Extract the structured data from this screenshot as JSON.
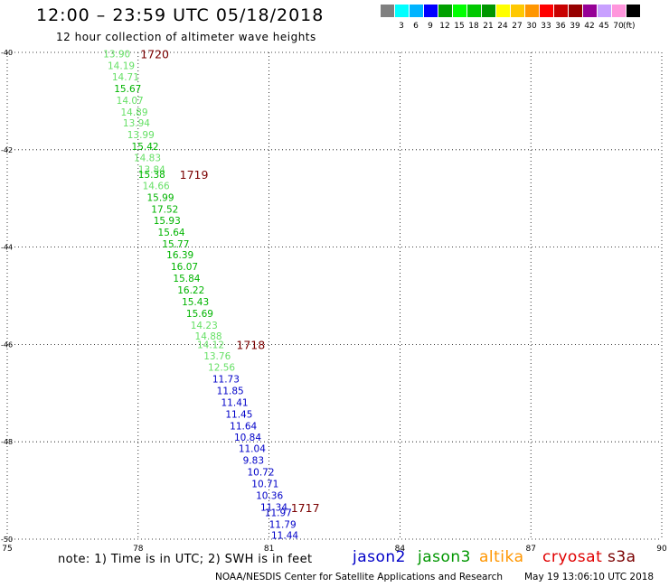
{
  "header": {
    "title": "12:00 – 23:59 UTC 05/18/2018",
    "subtitle": "12 hour collection of altimeter wave heights"
  },
  "legend": {
    "unit": "(ft)",
    "bins": [
      {
        "label": "",
        "color": "#808080"
      },
      {
        "label": "3",
        "color": "#00ffff"
      },
      {
        "label": "6",
        "color": "#00b4ff"
      },
      {
        "label": "9",
        "color": "#0000ff"
      },
      {
        "label": "12",
        "color": "#00a000"
      },
      {
        "label": "15",
        "color": "#00ff00"
      },
      {
        "label": "18",
        "color": "#00c800"
      },
      {
        "label": "21",
        "color": "#009600"
      },
      {
        "label": "24",
        "color": "#ffff00"
      },
      {
        "label": "27",
        "color": "#ffc800"
      },
      {
        "label": "30",
        "color": "#ff9600"
      },
      {
        "label": "33",
        "color": "#ff0000"
      },
      {
        "label": "36",
        "color": "#c80000"
      },
      {
        "label": "39",
        "color": "#960000"
      },
      {
        "label": "42",
        "color": "#960096"
      },
      {
        "label": "45",
        "color": "#c8a0ff"
      },
      {
        "label": "70",
        "color": "#ff96dc"
      },
      {
        "label": "",
        "color": "#000000"
      }
    ]
  },
  "map": {
    "lon_range": [
      75,
      90
    ],
    "lat_range": [
      -50,
      -40
    ],
    "lon_ticks": [
      "75",
      "78",
      "81",
      "84",
      "87",
      "90"
    ],
    "lat_ticks": [
      "-40",
      "-42",
      "-44",
      "-46",
      "-48",
      "-50"
    ],
    "colors": {
      "light_green": "#66e066",
      "green": "#00b400",
      "blue": "#0000c8",
      "time_label": "#7a0000"
    },
    "time_labels": [
      {
        "text": "1720",
        "lon": 78.05,
        "lat": -40.03
      },
      {
        "text": "1719",
        "lon": 78.95,
        "lat": -42.5
      },
      {
        "text": "1718",
        "lon": 80.25,
        "lat": -46.0
      },
      {
        "text": "1717",
        "lon": 81.5,
        "lat": -49.35
      }
    ],
    "observations": [
      {
        "swh": "13.90",
        "lon": 77.2,
        "lat": -40.03,
        "c": "light_green"
      },
      {
        "swh": "14.19",
        "lon": 77.3,
        "lat": -40.27,
        "c": "light_green"
      },
      {
        "swh": "14.71",
        "lon": 77.4,
        "lat": -40.5,
        "c": "light_green"
      },
      {
        "swh": "15.67",
        "lon": 77.45,
        "lat": -40.74,
        "c": "green"
      },
      {
        "swh": "14.07",
        "lon": 77.5,
        "lat": -40.98,
        "c": "light_green"
      },
      {
        "swh": "14.89",
        "lon": 77.6,
        "lat": -41.22,
        "c": "light_green"
      },
      {
        "swh": "13.94",
        "lon": 77.65,
        "lat": -41.45,
        "c": "light_green"
      },
      {
        "swh": "13.99",
        "lon": 77.75,
        "lat": -41.69,
        "c": "light_green"
      },
      {
        "swh": "15.42",
        "lon": 77.85,
        "lat": -41.93,
        "c": "green"
      },
      {
        "swh": "14.83",
        "lon": 77.9,
        "lat": -42.16,
        "c": "light_green"
      },
      {
        "swh": "13.84",
        "lon": 78.0,
        "lat": -42.4,
        "c": "light_green"
      },
      {
        "swh": "15.38",
        "lon": 78.0,
        "lat": -42.5,
        "c": "green"
      },
      {
        "swh": "14.66",
        "lon": 78.1,
        "lat": -42.74,
        "c": "light_green"
      },
      {
        "swh": "15.99",
        "lon": 78.2,
        "lat": -42.98,
        "c": "green"
      },
      {
        "swh": "17.52",
        "lon": 78.3,
        "lat": -43.22,
        "c": "green"
      },
      {
        "swh": "15.93",
        "lon": 78.35,
        "lat": -43.45,
        "c": "green"
      },
      {
        "swh": "15.64",
        "lon": 78.45,
        "lat": -43.69,
        "c": "green"
      },
      {
        "swh": "15.77",
        "lon": 78.55,
        "lat": -43.93,
        "c": "green"
      },
      {
        "swh": "16.39",
        "lon": 78.65,
        "lat": -44.16,
        "c": "green"
      },
      {
        "swh": "16.07",
        "lon": 78.75,
        "lat": -44.4,
        "c": "green"
      },
      {
        "swh": "15.84",
        "lon": 78.8,
        "lat": -44.64,
        "c": "green"
      },
      {
        "swh": "16.22",
        "lon": 78.9,
        "lat": -44.88,
        "c": "green"
      },
      {
        "swh": "15.43",
        "lon": 79.0,
        "lat": -45.12,
        "c": "green"
      },
      {
        "swh": "15.69",
        "lon": 79.1,
        "lat": -45.36,
        "c": "green"
      },
      {
        "swh": "14.23",
        "lon": 79.2,
        "lat": -45.6,
        "c": "light_green"
      },
      {
        "swh": "14.88",
        "lon": 79.3,
        "lat": -45.83,
        "c": "light_green"
      },
      {
        "swh": "14.12",
        "lon": 79.35,
        "lat": -46.0,
        "c": "light_green"
      },
      {
        "swh": "13.76",
        "lon": 79.5,
        "lat": -46.23,
        "c": "light_green"
      },
      {
        "swh": "12.56",
        "lon": 79.6,
        "lat": -46.47,
        "c": "light_green"
      },
      {
        "swh": "11.73",
        "lon": 79.7,
        "lat": -46.71,
        "c": "blue"
      },
      {
        "swh": "11.85",
        "lon": 79.8,
        "lat": -46.95,
        "c": "blue"
      },
      {
        "swh": "11.41",
        "lon": 79.9,
        "lat": -47.19,
        "c": "blue"
      },
      {
        "swh": "11.45",
        "lon": 80.0,
        "lat": -47.43,
        "c": "blue"
      },
      {
        "swh": "11.64",
        "lon": 80.1,
        "lat": -47.67,
        "c": "blue"
      },
      {
        "swh": "10.84",
        "lon": 80.2,
        "lat": -47.9,
        "c": "blue"
      },
      {
        "swh": "11.04",
        "lon": 80.3,
        "lat": -48.14,
        "c": "blue"
      },
      {
        "swh": "9.83",
        "lon": 80.4,
        "lat": -48.38,
        "c": "blue"
      },
      {
        "swh": "10.72",
        "lon": 80.5,
        "lat": -48.62,
        "c": "blue"
      },
      {
        "swh": "10.71",
        "lon": 80.6,
        "lat": -48.86,
        "c": "blue"
      },
      {
        "swh": "10.36",
        "lon": 80.7,
        "lat": -49.1,
        "c": "blue"
      },
      {
        "swh": "11.34",
        "lon": 80.8,
        "lat": -49.34,
        "c": "blue"
      },
      {
        "swh": "11.97",
        "lon": 80.9,
        "lat": -49.45,
        "c": "blue"
      },
      {
        "swh": "11.79",
        "lon": 81.0,
        "lat": -49.69,
        "c": "blue"
      },
      {
        "swh": "11.44",
        "lon": 81.05,
        "lat": -49.92,
        "c": "blue"
      }
    ]
  },
  "note": "note: 1) Time is in UTC; 2) SWH is in feet",
  "satellites": [
    {
      "name": "jason2",
      "color": "#0000c8"
    },
    {
      "name": "jason3",
      "color": "#009600"
    },
    {
      "name": "altika",
      "color": "#ff9600"
    },
    {
      "name": "cryosat",
      "color": "#e00000"
    },
    {
      "name": "s3a",
      "color": "#7a0000"
    }
  ],
  "footer": {
    "credit": "NOAA/NESDIS Center for Satellite Applications and Research",
    "timestamp": "May 19 13:06:10 UTC 2018"
  }
}
